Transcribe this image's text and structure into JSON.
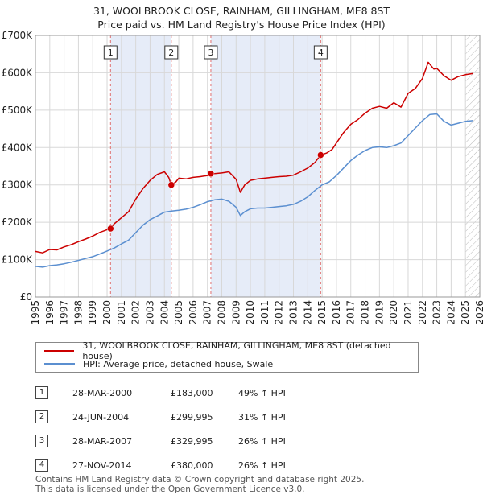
{
  "header": {
    "title_line1": "31, WOOLBROOK CLOSE, RAINHAM, GILLINGHAM, ME8 8ST",
    "title_line2": "Price paid vs. HM Land Registry's House Price Index (HPI)"
  },
  "legend": {
    "property_label": "31, WOOLBROOK CLOSE, RAINHAM, GILLINGHAM, ME8 8ST (detached house)",
    "hpi_label": "HPI: Average price, detached house, Swale"
  },
  "sales": [
    {
      "num": "1",
      "date": "28-MAR-2000",
      "price": "£183,000",
      "hpi": "49% ↑ HPI"
    },
    {
      "num": "2",
      "date": "24-JUN-2004",
      "price": "£299,995",
      "hpi": "31% ↑ HPI"
    },
    {
      "num": "3",
      "date": "28-MAR-2007",
      "price": "£329,995",
      "hpi": "26% ↑ HPI"
    },
    {
      "num": "4",
      "date": "27-NOV-2014",
      "price": "£380,000",
      "hpi": "26% ↑ HPI"
    }
  ],
  "footer": {
    "line1": "Contains HM Land Registry data © Crown copyright and database right 2025.",
    "line2": "This data is licensed under the Open Government Licence v3.0."
  },
  "colors": {
    "property": "#cc0000",
    "hpi": "#5b8fd0",
    "shade": "#e6ecf8",
    "grid": "#d8d8d8",
    "marker_line": "#e07070"
  },
  "chart_data": {
    "type": "line",
    "title": "31, WOOLBROOK CLOSE, RAINHAM, GILLINGHAM, ME8 8ST",
    "subtitle": "Price paid vs. HM Land Registry's House Price Index (HPI)",
    "xlabel": "",
    "ylabel": "",
    "xlim": [
      1995,
      2026
    ],
    "ylim": [
      0,
      700000
    ],
    "y_ticks": [
      0,
      100000,
      200000,
      300000,
      400000,
      500000,
      600000,
      700000
    ],
    "y_tick_labels": [
      "£0",
      "£100K",
      "£200K",
      "£300K",
      "£400K",
      "£500K",
      "£600K",
      "£700K"
    ],
    "x_ticks": [
      1995,
      1996,
      1997,
      1998,
      1999,
      2000,
      2001,
      2002,
      2003,
      2004,
      2005,
      2006,
      2007,
      2008,
      2009,
      2010,
      2011,
      2012,
      2013,
      2014,
      2015,
      2016,
      2017,
      2018,
      2019,
      2020,
      2021,
      2022,
      2023,
      2024,
      2025,
      2026
    ],
    "shaded_periods": [
      [
        2000.24,
        2004.48
      ],
      [
        2007.24,
        2014.9
      ]
    ],
    "hatch_from": 2025.0,
    "sale_markers": [
      {
        "label": "1",
        "x": 2000.24,
        "y": 183000
      },
      {
        "label": "2",
        "x": 2004.48,
        "y": 299995
      },
      {
        "label": "3",
        "x": 2007.24,
        "y": 329995
      },
      {
        "label": "4",
        "x": 2014.9,
        "y": 380000
      }
    ],
    "series": [
      {
        "name": "31, WOOLBROOK CLOSE, RAINHAM, GILLINGHAM, ME8 8ST (detached house)",
        "x": [
          1995,
          1995.5,
          1996,
          1996.5,
          1997,
          1997.5,
          1998,
          1998.5,
          1999,
          1999.5,
          2000,
          2000.24,
          2000.5,
          2001,
          2001.5,
          2002,
          2002.5,
          2003,
          2003.5,
          2004,
          2004.3,
          2004.48,
          2004.8,
          2005,
          2005.5,
          2006,
          2006.5,
          2007,
          2007.24,
          2007.5,
          2008,
          2008.5,
          2009,
          2009.3,
          2009.6,
          2010,
          2010.5,
          2011,
          2011.5,
          2012,
          2012.5,
          2013,
          2013.5,
          2014,
          2014.5,
          2014.9,
          2015.3,
          2015.7,
          2016,
          2016.5,
          2017,
          2017.5,
          2018,
          2018.5,
          2019,
          2019.5,
          2020,
          2020.5,
          2021,
          2021.5,
          2022,
          2022.4,
          2022.8,
          2023,
          2023.5,
          2024,
          2024.5,
          2025,
          2025.5
        ],
        "y": [
          122000,
          118000,
          127000,
          126000,
          134000,
          140000,
          148000,
          155000,
          163000,
          173000,
          180000,
          183000,
          196000,
          212000,
          228000,
          262000,
          290000,
          312000,
          328000,
          335000,
          320000,
          299995,
          308000,
          318000,
          316000,
          320000,
          322000,
          325000,
          329995,
          330000,
          332000,
          335000,
          315000,
          280000,
          300000,
          312000,
          316000,
          318000,
          320000,
          322000,
          323000,
          326000,
          335000,
          345000,
          360000,
          380000,
          385000,
          395000,
          412000,
          440000,
          462000,
          475000,
          492000,
          505000,
          510000,
          505000,
          520000,
          508000,
          545000,
          558000,
          585000,
          628000,
          610000,
          612000,
          592000,
          580000,
          590000,
          595000,
          598000
        ]
      },
      {
        "name": "HPI: Average price, detached house, Swale",
        "x": [
          1995,
          1995.5,
          1996,
          1996.5,
          1997,
          1997.5,
          1998,
          1998.5,
          1999,
          1999.5,
          2000,
          2000.5,
          2001,
          2001.5,
          2002,
          2002.5,
          2003,
          2003.5,
          2004,
          2004.5,
          2005,
          2005.5,
          2006,
          2006.5,
          2007,
          2007.5,
          2008,
          2008.5,
          2009,
          2009.3,
          2009.6,
          2010,
          2010.5,
          2011,
          2011.5,
          2012,
          2012.5,
          2013,
          2013.5,
          2014,
          2014.5,
          2015,
          2015.5,
          2016,
          2016.5,
          2017,
          2017.5,
          2018,
          2018.5,
          2019,
          2019.5,
          2020,
          2020.5,
          2021,
          2021.5,
          2022,
          2022.5,
          2023,
          2023.5,
          2024,
          2024.5,
          2025,
          2025.5
        ],
        "y": [
          82000,
          80000,
          84000,
          86000,
          89000,
          93000,
          98000,
          103000,
          108000,
          115000,
          123000,
          131000,
          142000,
          152000,
          172000,
          192000,
          207000,
          217000,
          227000,
          230000,
          232000,
          235000,
          240000,
          247000,
          255000,
          260000,
          262000,
          256000,
          240000,
          218000,
          228000,
          236000,
          238000,
          238000,
          240000,
          242000,
          244000,
          248000,
          256000,
          268000,
          285000,
          300000,
          308000,
          325000,
          345000,
          365000,
          380000,
          392000,
          400000,
          402000,
          400000,
          405000,
          412000,
          432000,
          452000,
          472000,
          488000,
          490000,
          470000,
          460000,
          465000,
          470000,
          472000
        ]
      }
    ]
  }
}
